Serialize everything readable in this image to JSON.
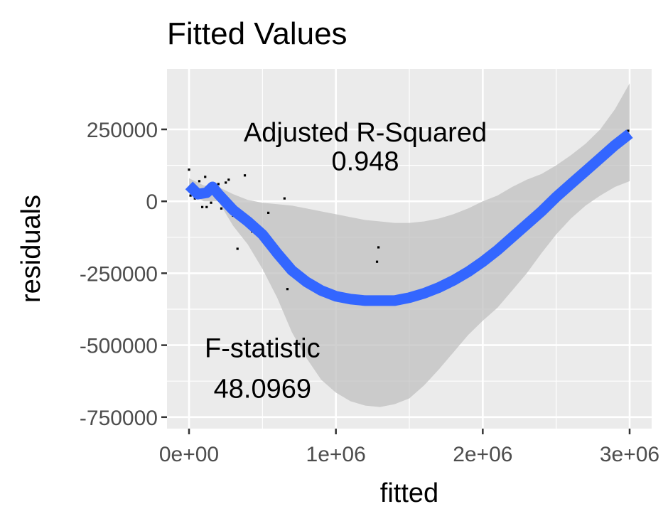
{
  "chart_data": {
    "type": "scatter",
    "title": "Fitted Values",
    "xlabel": "fitted",
    "ylabel": "residuals",
    "xlim": [
      -150000,
      3150000
    ],
    "ylim": [
      -790000,
      460000
    ],
    "x_ticks": [
      {
        "value": 0,
        "label": "0e+00"
      },
      {
        "value": 1000000,
        "label": "1e+06"
      },
      {
        "value": 2000000,
        "label": "2e+06"
      },
      {
        "value": 3000000,
        "label": "3e+06"
      }
    ],
    "y_ticks": [
      {
        "value": 250000,
        "label": "250000"
      },
      {
        "value": 0,
        "label": "0"
      },
      {
        "value": -250000,
        "label": "-250000"
      },
      {
        "value": -500000,
        "label": "-500000"
      },
      {
        "value": -750000,
        "label": "-750000"
      }
    ],
    "grid": true,
    "colors": {
      "panel_bg": "#ebebeb",
      "grid": "#ffffff",
      "points": "#000000",
      "smooth_line": "#3366ff",
      "confidence_band": "#c0c0c0"
    },
    "points": [
      {
        "x": 0,
        "y": 110000
      },
      {
        "x": 10000,
        "y": 20000
      },
      {
        "x": 40000,
        "y": 10000
      },
      {
        "x": 70000,
        "y": 70000
      },
      {
        "x": 90000,
        "y": -20000
      },
      {
        "x": 110000,
        "y": 85000
      },
      {
        "x": 120000,
        "y": -20000
      },
      {
        "x": 150000,
        "y": -5000
      },
      {
        "x": 170000,
        "y": 40000
      },
      {
        "x": 200000,
        "y": 60000
      },
      {
        "x": 220000,
        "y": -25000
      },
      {
        "x": 250000,
        "y": 65000
      },
      {
        "x": 270000,
        "y": 75000
      },
      {
        "x": 300000,
        "y": -50000
      },
      {
        "x": 330000,
        "y": -165000
      },
      {
        "x": 380000,
        "y": 90000
      },
      {
        "x": 430000,
        "y": -105000
      },
      {
        "x": 540000,
        "y": -40000
      },
      {
        "x": 650000,
        "y": 10000
      },
      {
        "x": 670000,
        "y": -305000
      },
      {
        "x": 1280000,
        "y": -210000
      },
      {
        "x": 1290000,
        "y": -160000
      },
      {
        "x": 2990000,
        "y": 245000
      }
    ],
    "smooth": {
      "method": "loess",
      "fit": [
        {
          "x": 0,
          "y": 55000
        },
        {
          "x": 60000,
          "y": 25000
        },
        {
          "x": 120000,
          "y": 30000
        },
        {
          "x": 160000,
          "y": 50000
        },
        {
          "x": 200000,
          "y": 25000
        },
        {
          "x": 300000,
          "y": -30000
        },
        {
          "x": 400000,
          "y": -70000
        },
        {
          "x": 500000,
          "y": -115000
        },
        {
          "x": 600000,
          "y": -180000
        },
        {
          "x": 700000,
          "y": -240000
        },
        {
          "x": 800000,
          "y": -280000
        },
        {
          "x": 900000,
          "y": -310000
        },
        {
          "x": 1000000,
          "y": -330000
        },
        {
          "x": 1100000,
          "y": -340000
        },
        {
          "x": 1200000,
          "y": -345000
        },
        {
          "x": 1300000,
          "y": -345000
        },
        {
          "x": 1400000,
          "y": -345000
        },
        {
          "x": 1500000,
          "y": -335000
        },
        {
          "x": 1600000,
          "y": -320000
        },
        {
          "x": 1700000,
          "y": -300000
        },
        {
          "x": 1800000,
          "y": -275000
        },
        {
          "x": 1900000,
          "y": -245000
        },
        {
          "x": 2000000,
          "y": -210000
        },
        {
          "x": 2100000,
          "y": -170000
        },
        {
          "x": 2200000,
          "y": -125000
        },
        {
          "x": 2300000,
          "y": -80000
        },
        {
          "x": 2400000,
          "y": -35000
        },
        {
          "x": 2500000,
          "y": 15000
        },
        {
          "x": 2600000,
          "y": 60000
        },
        {
          "x": 2700000,
          "y": 105000
        },
        {
          "x": 2800000,
          "y": 150000
        },
        {
          "x": 2900000,
          "y": 195000
        },
        {
          "x": 3000000,
          "y": 235000
        }
      ],
      "band_upper": [
        {
          "x": 0,
          "y": 80000
        },
        {
          "x": 100000,
          "y": 55000
        },
        {
          "x": 200000,
          "y": 50000
        },
        {
          "x": 300000,
          "y": 25000
        },
        {
          "x": 400000,
          "y": 5000
        },
        {
          "x": 500000,
          "y": -5000
        },
        {
          "x": 600000,
          "y": -10000
        },
        {
          "x": 700000,
          "y": -15000
        },
        {
          "x": 800000,
          "y": -25000
        },
        {
          "x": 900000,
          "y": -35000
        },
        {
          "x": 1000000,
          "y": -45000
        },
        {
          "x": 1100000,
          "y": -55000
        },
        {
          "x": 1200000,
          "y": -65000
        },
        {
          "x": 1300000,
          "y": -70000
        },
        {
          "x": 1400000,
          "y": -75000
        },
        {
          "x": 1500000,
          "y": -75000
        },
        {
          "x": 1600000,
          "y": -70000
        },
        {
          "x": 1700000,
          "y": -60000
        },
        {
          "x": 1800000,
          "y": -45000
        },
        {
          "x": 1900000,
          "y": -25000
        },
        {
          "x": 2000000,
          "y": 0
        },
        {
          "x": 2100000,
          "y": 20000
        },
        {
          "x": 2200000,
          "y": 50000
        },
        {
          "x": 2300000,
          "y": 75000
        },
        {
          "x": 2400000,
          "y": 95000
        },
        {
          "x": 2500000,
          "y": 125000
        },
        {
          "x": 2600000,
          "y": 160000
        },
        {
          "x": 2700000,
          "y": 200000
        },
        {
          "x": 2800000,
          "y": 250000
        },
        {
          "x": 2900000,
          "y": 320000
        },
        {
          "x": 3000000,
          "y": 410000
        }
      ],
      "band_lower": [
        {
          "x": 0,
          "y": 30000
        },
        {
          "x": 100000,
          "y": 0
        },
        {
          "x": 200000,
          "y": 0
        },
        {
          "x": 300000,
          "y": -85000
        },
        {
          "x": 400000,
          "y": -150000
        },
        {
          "x": 500000,
          "y": -235000
        },
        {
          "x": 600000,
          "y": -335000
        },
        {
          "x": 700000,
          "y": -455000
        },
        {
          "x": 800000,
          "y": -545000
        },
        {
          "x": 900000,
          "y": -620000
        },
        {
          "x": 1000000,
          "y": -665000
        },
        {
          "x": 1100000,
          "y": -695000
        },
        {
          "x": 1200000,
          "y": -710000
        },
        {
          "x": 1300000,
          "y": -715000
        },
        {
          "x": 1400000,
          "y": -705000
        },
        {
          "x": 1500000,
          "y": -685000
        },
        {
          "x": 1600000,
          "y": -640000
        },
        {
          "x": 1700000,
          "y": -585000
        },
        {
          "x": 1800000,
          "y": -525000
        },
        {
          "x": 1900000,
          "y": -465000
        },
        {
          "x": 2000000,
          "y": -415000
        },
        {
          "x": 2100000,
          "y": -370000
        },
        {
          "x": 2200000,
          "y": -310000
        },
        {
          "x": 2300000,
          "y": -250000
        },
        {
          "x": 2400000,
          "y": -180000
        },
        {
          "x": 2500000,
          "y": -115000
        },
        {
          "x": 2600000,
          "y": -60000
        },
        {
          "x": 2700000,
          "y": -15000
        },
        {
          "x": 2800000,
          "y": 20000
        },
        {
          "x": 2900000,
          "y": 50000
        },
        {
          "x": 3000000,
          "y": 70000
        }
      ]
    },
    "annotations": [
      {
        "id": "adj-r2-label",
        "text": "Adjusted R-Squared",
        "x": 1200000,
        "y": 240000
      },
      {
        "id": "adj-r2-value",
        "text": "0.948",
        "x": 1200000,
        "y": 140000
      },
      {
        "id": "f-stat-label",
        "text": "F-statistic",
        "x": 500000,
        "y": -510000
      },
      {
        "id": "f-stat-value",
        "text": "48.0969",
        "x": 500000,
        "y": -650000
      }
    ]
  }
}
